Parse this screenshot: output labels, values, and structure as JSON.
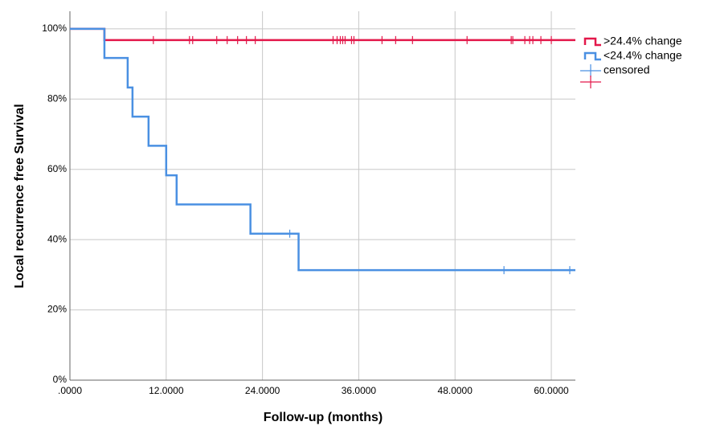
{
  "chart_data": {
    "type": "step",
    "x_label": "Follow-up (months)",
    "y_label": "Local recurrence free Survival",
    "xlim": [
      0,
      63
    ],
    "ylim": [
      0,
      105
    ],
    "xticks": [
      {
        "value": 0,
        "label": ".0000"
      },
      {
        "value": 12,
        "label": "12.0000"
      },
      {
        "value": 24,
        "label": "24.0000"
      },
      {
        "value": 36,
        "label": "36.0000"
      },
      {
        "value": 48,
        "label": "48.0000"
      },
      {
        "value": 60,
        "label": "60.0000"
      }
    ],
    "yticks": [
      {
        "value": 0,
        "label": "0%"
      },
      {
        "value": 20,
        "label": "20%"
      },
      {
        "value": 40,
        "label": "40%"
      },
      {
        "value": 60,
        "label": "60%"
      },
      {
        "value": 80,
        "label": "80%"
      },
      {
        "value": 100,
        "label": "100%"
      }
    ],
    "grid": true,
    "censored_label": "censored",
    "series": [
      {
        "name": ">24.4% change",
        "color": "#e3184a",
        "x": [
          0,
          4.3,
          63
        ],
        "values": [
          100,
          96.8,
          96.8
        ],
        "censored": {
          "x": [
            10.4,
            14.9,
            15.3,
            18.3,
            19.6,
            20.9,
            22.0,
            23.1,
            32.8,
            33.3,
            33.7,
            34.0,
            34.3,
            35.1,
            35.4,
            38.9,
            40.6,
            42.7,
            49.5,
            55.0,
            55.2,
            56.7,
            57.3,
            57.7,
            58.7,
            60.0
          ],
          "values": [
            96.8,
            96.8,
            96.8,
            96.8,
            96.8,
            96.8,
            96.8,
            96.8,
            96.8,
            96.8,
            96.8,
            96.8,
            96.8,
            96.8,
            96.8,
            96.8,
            96.8,
            96.8,
            96.8,
            96.8,
            96.8,
            96.8,
            96.8,
            96.8,
            96.8,
            96.8
          ]
        }
      },
      {
        "name": "<24.4% change",
        "color": "#4a90e2",
        "x": [
          0,
          4.3,
          7.2,
          7.8,
          9.8,
          12.0,
          13.3,
          22.5,
          28.5,
          63
        ],
        "values": [
          100,
          91.7,
          83.3,
          75,
          66.7,
          58.3,
          50,
          41.7,
          31.3,
          31.3
        ],
        "censored": {
          "x": [
            27.4,
            54.1,
            62.3
          ],
          "values": [
            41.7,
            31.3,
            31.3
          ]
        }
      }
    ]
  }
}
